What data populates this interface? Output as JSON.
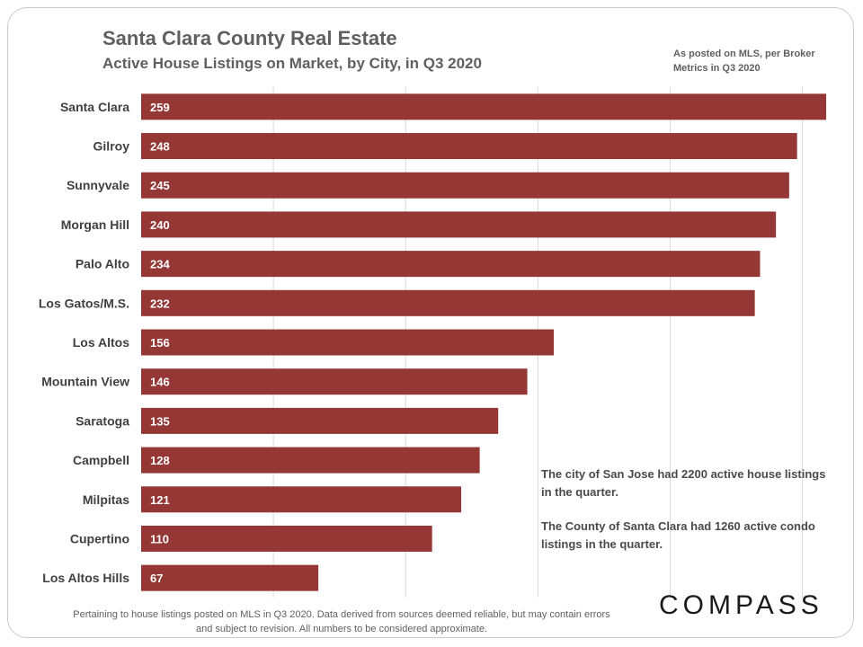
{
  "header": {
    "title": "Santa Clara County Real Estate",
    "subtitle": "Active House Listings on Market, by City, in Q3 2020",
    "source_note": "As posted on MLS, per Broker Metrics in Q3 2020"
  },
  "notes": {
    "san_jose": "The city of San Jose had 2200 active house listings in the quarter.",
    "condos": "The County of Santa Clara had 1260 active condo listings in the quarter."
  },
  "footer": {
    "disclaimer": "Pertaining to house listings posted on MLS in Q3 2020. Data derived from sources deemed reliable, but may contain errors and subject to revision. All numbers to be considered approximate.",
    "brand": "COMPASS"
  },
  "colors": {
    "bar": "#953735",
    "grid": "#d9d9d9",
    "label": "#404040"
  },
  "chart_data": {
    "type": "bar",
    "orientation": "horizontal",
    "title": "Santa Clara County Real Estate",
    "subtitle": "Active House Listings on Market, by City, in Q3 2020",
    "categories": [
      "Santa Clara",
      "Gilroy",
      "Sunnyvale",
      "Morgan Hill",
      "Palo Alto",
      "Los Gatos/M.S.",
      "Los Altos",
      "Mountain View",
      "Saratoga",
      "Campbell",
      "Milpitas",
      "Cupertino",
      "Los Altos Hills"
    ],
    "values": [
      259,
      248,
      245,
      240,
      234,
      232,
      156,
      146,
      135,
      128,
      121,
      110,
      67
    ],
    "xlim": [
      0,
      260
    ],
    "grid": true,
    "data_labels": true
  }
}
